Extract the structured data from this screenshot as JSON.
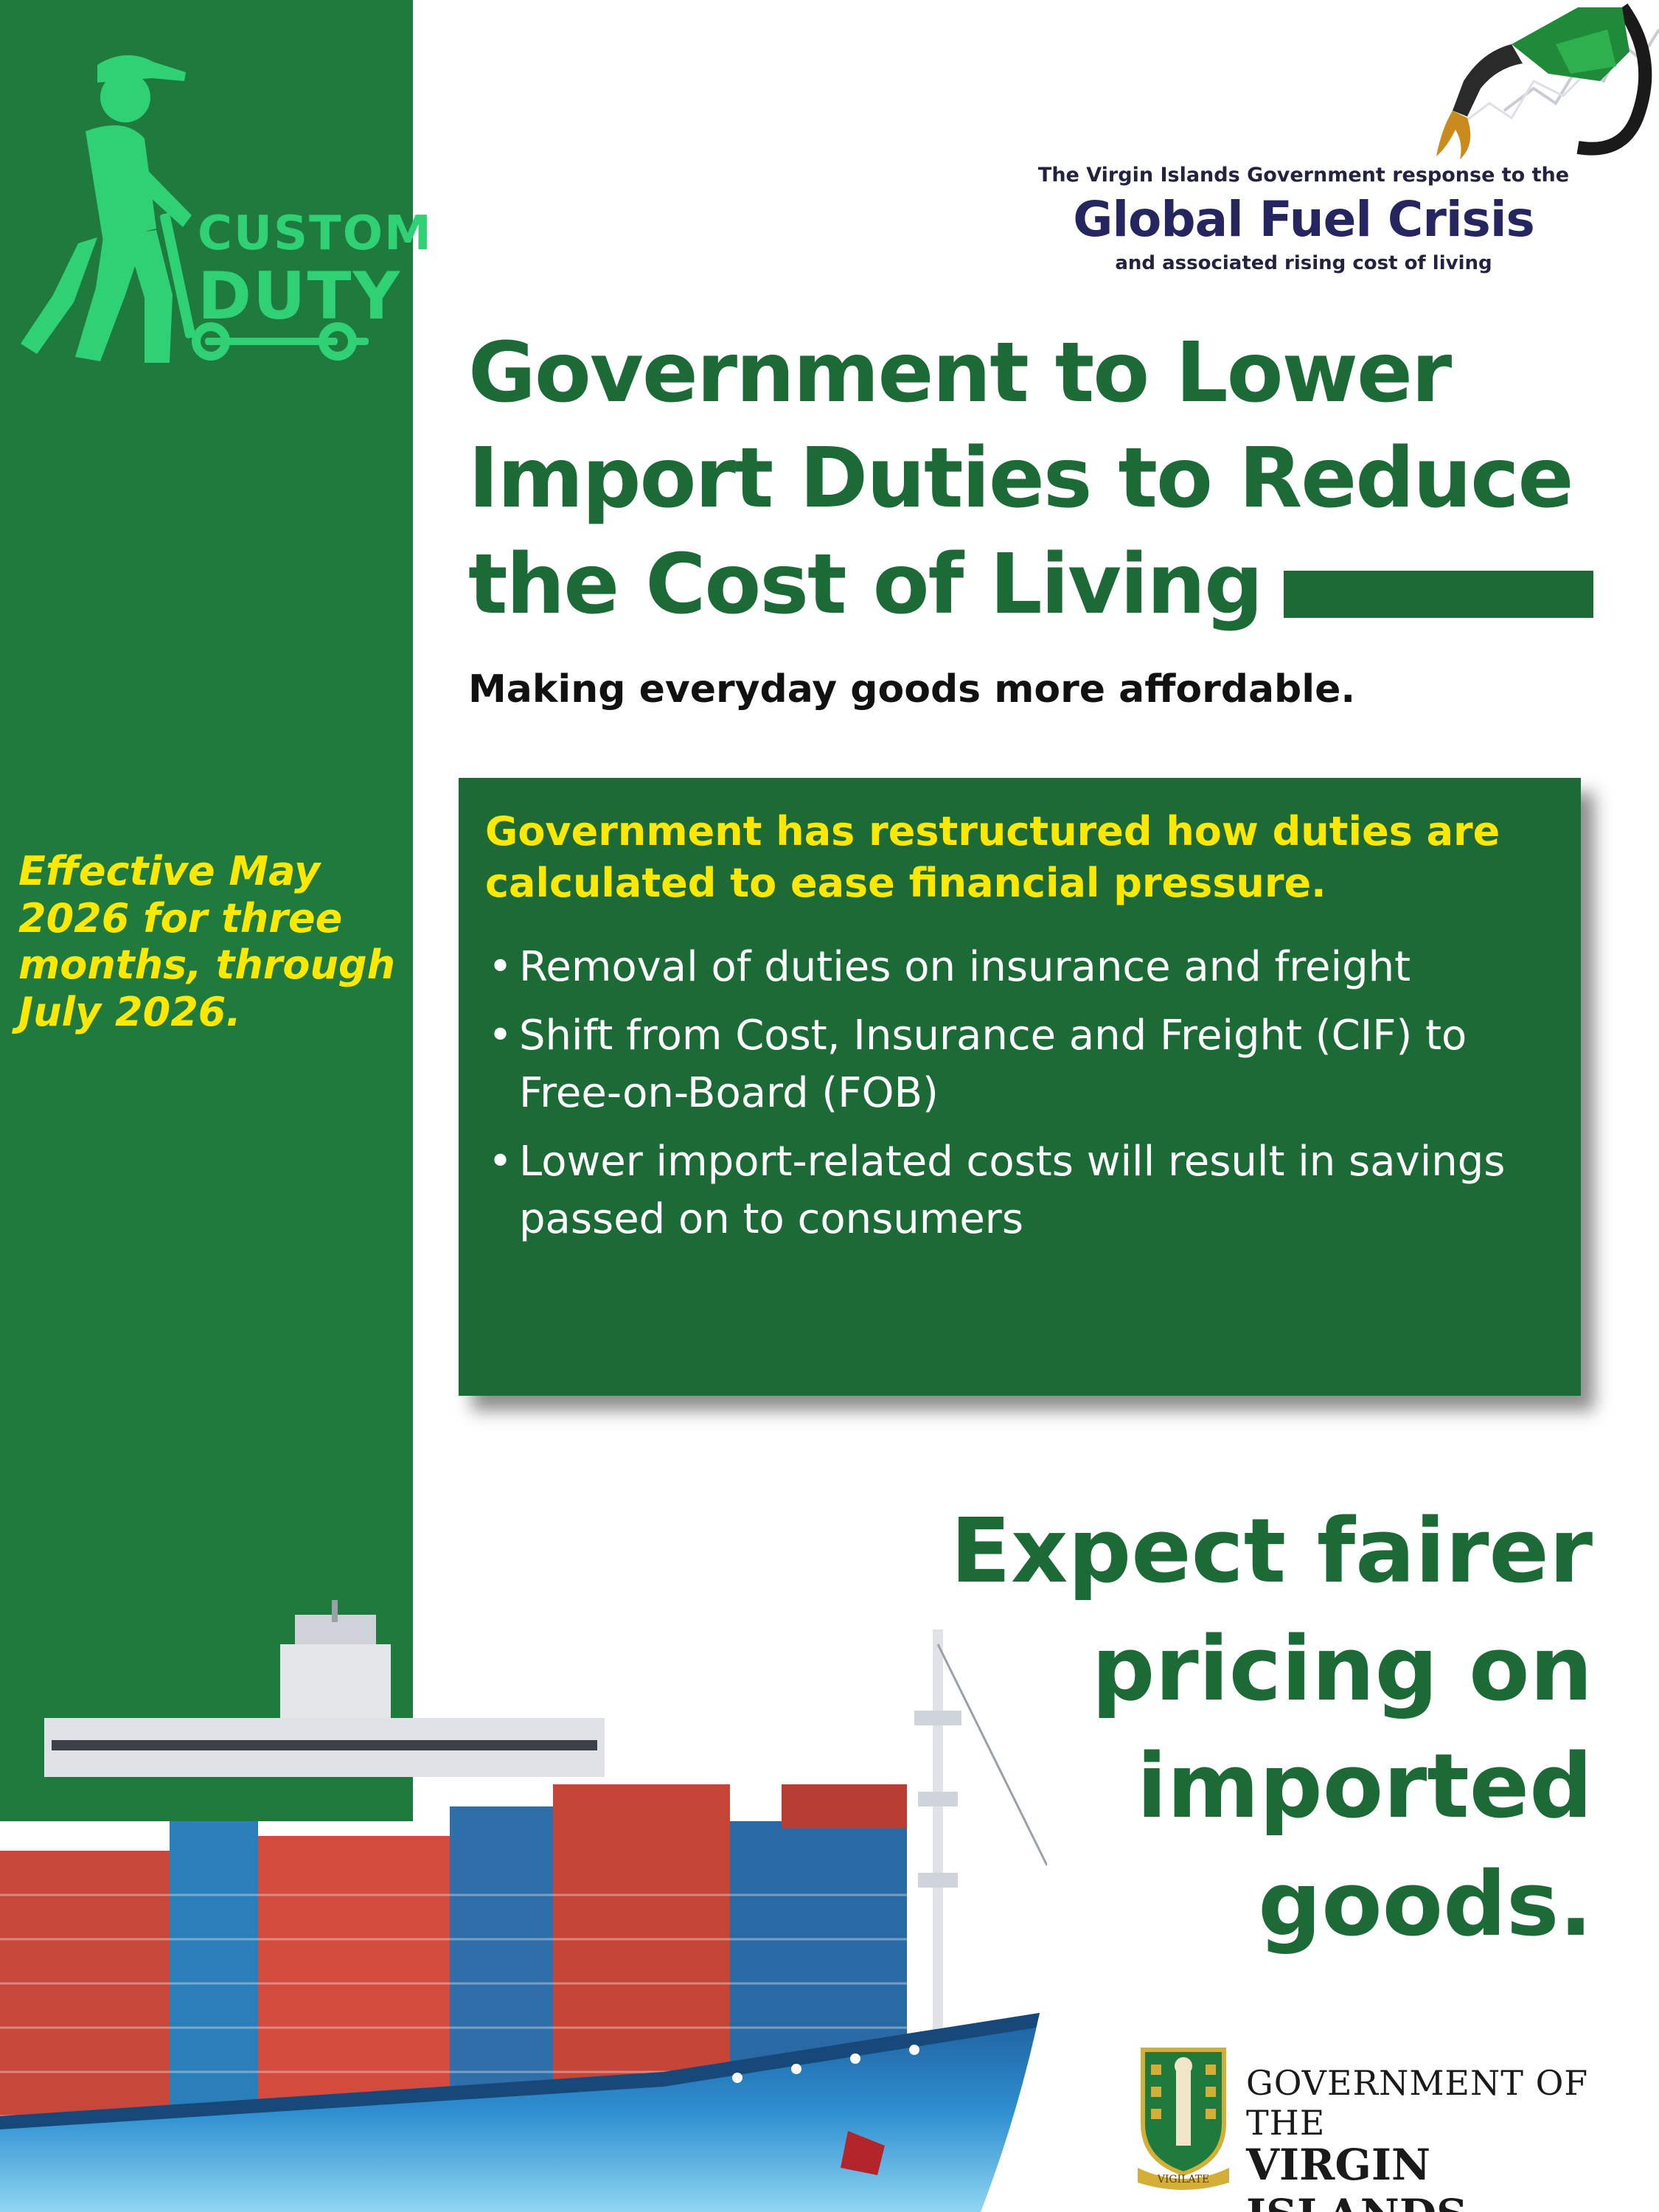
{
  "sidebar": {
    "logo": {
      "word1": "CUSTOM",
      "word2": "DUTY"
    },
    "effective_text": "Effective May 2026 for three months, through July 2026."
  },
  "campaign": {
    "line1": "The Virgin Islands Government response to the",
    "title": "Global Fuel Crisis",
    "line3": "and associated rising cost of living"
  },
  "headline": {
    "line1": "Government to Lower",
    "line2": "Import Duties to Reduce",
    "line3": "the Cost of Living"
  },
  "subhead": "Making everyday goods more affordable.",
  "info_box": {
    "lead": "Government has restructured how duties are calculated to ease financial pressure.",
    "bullets": [
      "Removal of duties on insurance and freight",
      "Shift from Cost, Insurance and Freight (CIF) to Free-on-Board (FOB)",
      "Lower import-related costs will result in savings passed on to consumers"
    ]
  },
  "expect": {
    "line1": "Expect fairer",
    "line2": "pricing on",
    "line3": "imported",
    "line4": "goods."
  },
  "government": {
    "line1": "GOVERNMENT OF THE",
    "line2": "VIRGIN ISLANDS",
    "motto": "VIGILATE"
  },
  "colors": {
    "brand_green": "#1c6b37",
    "sidebar_green": "#1f7a3d",
    "logo_green": "#2fd174",
    "accent_yellow": "#ffe800",
    "campaign_navy": "#252560"
  }
}
